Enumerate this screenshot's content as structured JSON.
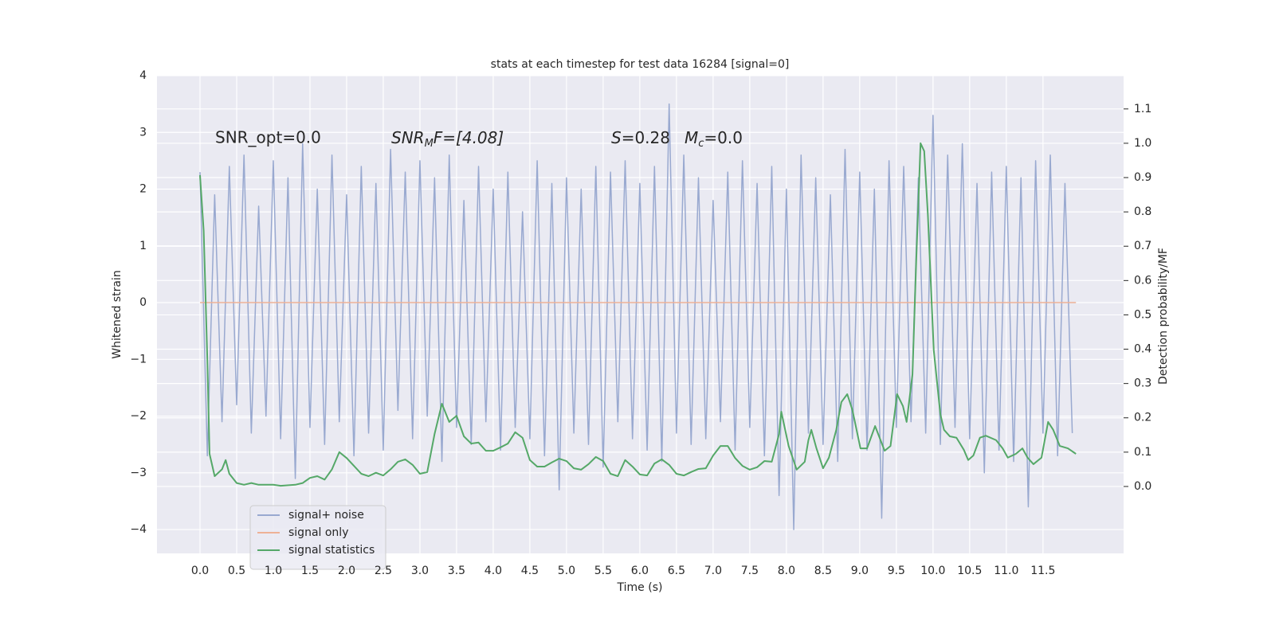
{
  "chart_data": {
    "type": "line",
    "title": "stats at each timestep for test data 16284 [signal=0]",
    "xlabel": "Time (s)",
    "ylabel": "Whitened strain",
    "y2label": "Detection probability/MF",
    "annotations": [
      [
        "SNR_opt=0.0"
      ],
      [
        "SNR",
        "M",
        "F=[4.08]"
      ],
      [
        "S",
        "=0.28"
      ],
      [
        "M",
        "c",
        "=0.0"
      ]
    ],
    "xlim": [
      -0.587,
      12.6
    ],
    "ylim": [
      -4.42,
      4.0
    ],
    "y2lim": [
      -0.195,
      1.197
    ],
    "xticks": [
      {
        "value": 0,
        "label": "0.0"
      },
      {
        "value": 0.5,
        "label": "0.5"
      },
      {
        "value": 1,
        "label": "1.0"
      },
      {
        "value": 1.5,
        "label": "1.5"
      },
      {
        "value": 2,
        "label": "2.0"
      },
      {
        "value": 2.5,
        "label": "2.5"
      },
      {
        "value": 3,
        "label": "3.0"
      },
      {
        "value": 3.5,
        "label": "3.5"
      },
      {
        "value": 4,
        "label": "4.0"
      },
      {
        "value": 4.5,
        "label": "4.5"
      },
      {
        "value": 5,
        "label": "5.0"
      },
      {
        "value": 5.5,
        "label": "5.5"
      },
      {
        "value": 6,
        "label": "6.0"
      },
      {
        "value": 6.5,
        "label": "6.5"
      },
      {
        "value": 7,
        "label": "7.0"
      },
      {
        "value": 7.5,
        "label": "7.5"
      },
      {
        "value": 8,
        "label": "8.0"
      },
      {
        "value": 8.5,
        "label": "8.5"
      },
      {
        "value": 9,
        "label": "9.0"
      },
      {
        "value": 9.5,
        "label": "9.5"
      },
      {
        "value": 10,
        "label": "10.0"
      },
      {
        "value": 10.5,
        "label": "10.5"
      },
      {
        "value": 11,
        "label": "11.0"
      },
      {
        "value": 11.5,
        "label": "11.5"
      }
    ],
    "yticks": [
      {
        "value": -4,
        "label": "−4"
      },
      {
        "value": -3,
        "label": "−3"
      },
      {
        "value": -2,
        "label": "−2"
      },
      {
        "value": -1,
        "label": "−1"
      },
      0,
      1,
      2,
      3,
      4
    ],
    "y2ticks": [
      {
        "value": 0,
        "label": "0.0"
      },
      {
        "value": 0.1,
        "label": "0.1"
      },
      {
        "value": 0.2,
        "label": "0.2"
      },
      {
        "value": 0.3,
        "label": "0.3"
      },
      {
        "value": 0.4,
        "label": "0.4"
      },
      {
        "value": 0.5,
        "label": "0.5"
      },
      {
        "value": 0.6,
        "label": "0.6"
      },
      {
        "value": 0.7,
        "label": "0.7"
      },
      {
        "value": 0.8,
        "label": "0.8"
      },
      {
        "value": 0.9,
        "label": "0.9"
      },
      {
        "value": 1,
        "label": "1.0"
      },
      {
        "value": 1.1,
        "label": "1.1"
      }
    ],
    "grid": true,
    "legend": "lower left",
    "series": [
      {
        "name": "signal+ noise",
        "color": "#99a9d0",
        "x": [
          0.0,
          0.1,
          0.2,
          0.3,
          0.4,
          0.5,
          0.6,
          0.7,
          0.8,
          0.9,
          1.0,
          1.1,
          1.2,
          1.3,
          1.4,
          1.5,
          1.6,
          1.7,
          1.8,
          1.9,
          2.0,
          2.1,
          2.2,
          2.3,
          2.4,
          2.5,
          2.6,
          2.7,
          2.8,
          2.9,
          3.0,
          3.1,
          3.2,
          3.3,
          3.4,
          3.5,
          3.6,
          3.7,
          3.8,
          3.9,
          4.0,
          4.1,
          4.2,
          4.3,
          4.4,
          4.5,
          4.6,
          4.7,
          4.8,
          4.9,
          5.0,
          5.1,
          5.2,
          5.3,
          5.4,
          5.5,
          5.6,
          5.7,
          5.8,
          5.9,
          6.0,
          6.1,
          6.2,
          6.3,
          6.4,
          6.5,
          6.6,
          6.7,
          6.8,
          6.9,
          7.0,
          7.1,
          7.2,
          7.3,
          7.4,
          7.5,
          7.6,
          7.7,
          7.8,
          7.9,
          8.0,
          8.1,
          8.2,
          8.3,
          8.4,
          8.5,
          8.6,
          8.7,
          8.8,
          8.9,
          9.0,
          9.1,
          9.2,
          9.3,
          9.4,
          9.5,
          9.6,
          9.7,
          9.8,
          9.9,
          10.0,
          10.1,
          10.2,
          10.3,
          10.4,
          10.5,
          10.6,
          10.7,
          10.8,
          10.9,
          11.0,
          11.1,
          11.2,
          11.3,
          11.4,
          11.5,
          11.6,
          11.7,
          11.8,
          11.9
        ],
        "values": [
          2.3,
          -2.7,
          1.9,
          -2.1,
          2.4,
          -1.8,
          2.6,
          -2.3,
          1.7,
          -2.0,
          2.5,
          -2.4,
          2.2,
          -3.1,
          2.8,
          -2.2,
          2.0,
          -2.5,
          2.6,
          -2.1,
          1.9,
          -2.7,
          2.4,
          -2.3,
          2.1,
          -2.6,
          2.7,
          -1.9,
          2.3,
          -2.4,
          2.5,
          -2.0,
          2.2,
          -2.8,
          2.6,
          -2.2,
          1.8,
          -2.5,
          2.4,
          -2.1,
          2.0,
          -2.6,
          2.3,
          -2.2,
          1.6,
          -2.4,
          2.5,
          -2.7,
          2.1,
          -3.3,
          2.2,
          -2.3,
          2.0,
          -2.5,
          2.4,
          -2.9,
          2.3,
          -2.1,
          2.5,
          -2.4,
          2.1,
          -2.6,
          2.4,
          -2.8,
          3.5,
          -2.3,
          2.6,
          -2.5,
          2.2,
          -2.4,
          1.8,
          -2.1,
          2.3,
          -2.6,
          2.5,
          -2.2,
          2.1,
          -2.7,
          2.4,
          -3.4,
          2.0,
          -4.0,
          2.6,
          -2.3,
          2.2,
          -2.5,
          1.9,
          -2.8,
          2.7,
          -2.4,
          2.3,
          -2.6,
          2.0,
          -3.8,
          2.5,
          -2.2,
          2.4,
          -2.1,
          2.2,
          -2.3,
          3.3,
          -2.5,
          2.6,
          -2.2,
          2.8,
          -2.4,
          2.1,
          -3.0,
          2.3,
          -2.6,
          2.4,
          -2.8,
          2.2,
          -3.6,
          2.5,
          -2.3,
          2.6,
          -2.7,
          2.1,
          -2.3
        ]
      },
      {
        "name": "signal only",
        "color": "#eeb196",
        "x": [
          0.0,
          11.95
        ],
        "values": [
          0,
          0
        ]
      },
      {
        "name": "signal statistics",
        "color": "#55a868",
        "axis": "y2",
        "x": [
          0,
          0.05,
          0.1,
          0.13,
          0.2,
          0.3,
          0.35,
          0.4,
          0.5,
          0.6,
          0.7,
          0.8,
          1.0,
          1.1,
          1.3,
          1.4,
          1.5,
          1.6,
          1.7,
          1.8,
          1.9,
          2.0,
          2.1,
          2.2,
          2.3,
          2.4,
          2.5,
          2.6,
          2.7,
          2.8,
          2.9,
          3.0,
          3.1,
          3.2,
          3.3,
          3.4,
          3.5,
          3.6,
          3.7,
          3.8,
          3.9,
          4.0,
          4.1,
          4.2,
          4.3,
          4.4,
          4.5,
          4.6,
          4.7,
          4.8,
          4.9,
          5.0,
          5.1,
          5.2,
          5.3,
          5.4,
          5.5,
          5.6,
          5.7,
          5.8,
          5.9,
          6.0,
          6.1,
          6.2,
          6.3,
          6.4,
          6.5,
          6.6,
          6.7,
          6.8,
          6.9,
          7.0,
          7.1,
          7.2,
          7.3,
          7.4,
          7.5,
          7.6,
          7.7,
          7.8,
          7.9,
          7.93,
          8.03,
          8.14,
          8.25,
          8.3,
          8.34,
          8.41,
          8.5,
          8.58,
          8.68,
          8.75,
          8.83,
          8.9,
          9.01,
          9.1,
          9.21,
          9.34,
          9.42,
          9.51,
          9.59,
          9.64,
          9.72,
          9.77,
          9.83,
          9.88,
          9.93,
          10.01,
          10.1,
          10.15,
          10.23,
          10.32,
          10.42,
          10.48,
          10.55,
          10.64,
          10.72,
          10.86,
          10.95,
          11.02,
          11.13,
          11.22,
          11.29,
          11.37,
          11.48,
          11.57,
          11.64,
          11.73,
          11.84,
          11.95
        ],
        "values": [
          0.907,
          0.745,
          0.37,
          0.095,
          0.03,
          0.05,
          0.077,
          0.037,
          0.01,
          0.005,
          0.01,
          0.005,
          0.005,
          0.002,
          0.005,
          0.01,
          0.025,
          0.03,
          0.02,
          0.05,
          0.1,
          0.083,
          0.06,
          0.037,
          0.03,
          0.04,
          0.032,
          0.05,
          0.072,
          0.079,
          0.063,
          0.037,
          0.042,
          0.153,
          0.241,
          0.188,
          0.206,
          0.146,
          0.125,
          0.128,
          0.104,
          0.104,
          0.114,
          0.125,
          0.158,
          0.142,
          0.077,
          0.058,
          0.058,
          0.07,
          0.081,
          0.074,
          0.053,
          0.049,
          0.065,
          0.086,
          0.074,
          0.037,
          0.03,
          0.077,
          0.058,
          0.035,
          0.032,
          0.067,
          0.079,
          0.063,
          0.037,
          0.032,
          0.042,
          0.051,
          0.053,
          0.09,
          0.118,
          0.118,
          0.083,
          0.06,
          0.049,
          0.056,
          0.074,
          0.072,
          0.153,
          0.218,
          0.118,
          0.049,
          0.072,
          0.135,
          0.165,
          0.111,
          0.053,
          0.084,
          0.165,
          0.246,
          0.269,
          0.223,
          0.111,
          0.111,
          0.176,
          0.104,
          0.118,
          0.269,
          0.234,
          0.188,
          0.327,
          0.652,
          1.0,
          0.977,
          0.791,
          0.397,
          0.211,
          0.165,
          0.146,
          0.142,
          0.107,
          0.077,
          0.09,
          0.142,
          0.148,
          0.135,
          0.111,
          0.084,
          0.095,
          0.111,
          0.084,
          0.065,
          0.084,
          0.188,
          0.165,
          0.118,
          0.111,
          0.095
        ]
      }
    ]
  }
}
